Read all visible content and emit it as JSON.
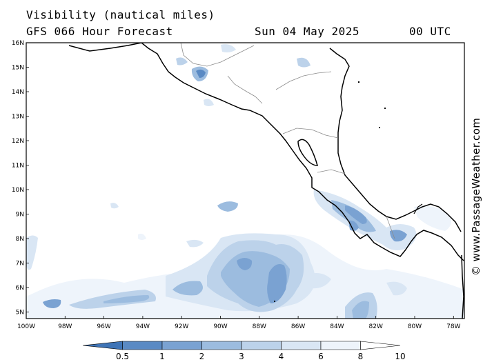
{
  "header": {
    "title": "Visibility (nautical miles)",
    "model": "GFS 066 Hour Forecast",
    "date": "Sun 04 May 2025",
    "time": "00 UTC"
  },
  "credit": "© www.PassageWeather.com",
  "map": {
    "lon_range": [
      -100,
      -77.5
    ],
    "lat_range": [
      4.8,
      16
    ],
    "lat_ticks": [
      "16N",
      "15N",
      "14N",
      "13N",
      "12N",
      "11N",
      "10N",
      "9N",
      "8N",
      "7N",
      "6N",
      "5N"
    ],
    "lon_ticks": [
      "100W",
      "98W",
      "96W",
      "94W",
      "92W",
      "90W",
      "88W",
      "86W",
      "84W",
      "82W",
      "80W",
      "78W"
    ]
  },
  "colorbar": {
    "labels": [
      "0.5",
      "1",
      "2",
      "3",
      "4",
      "6",
      "8",
      "10"
    ],
    "colors": [
      "#3f74b6",
      "#5a8ac4",
      "#7aa2d2",
      "#9cbcdf",
      "#bcd2ea",
      "#d9e6f4",
      "#eef4fb",
      "#ffffff"
    ]
  }
}
